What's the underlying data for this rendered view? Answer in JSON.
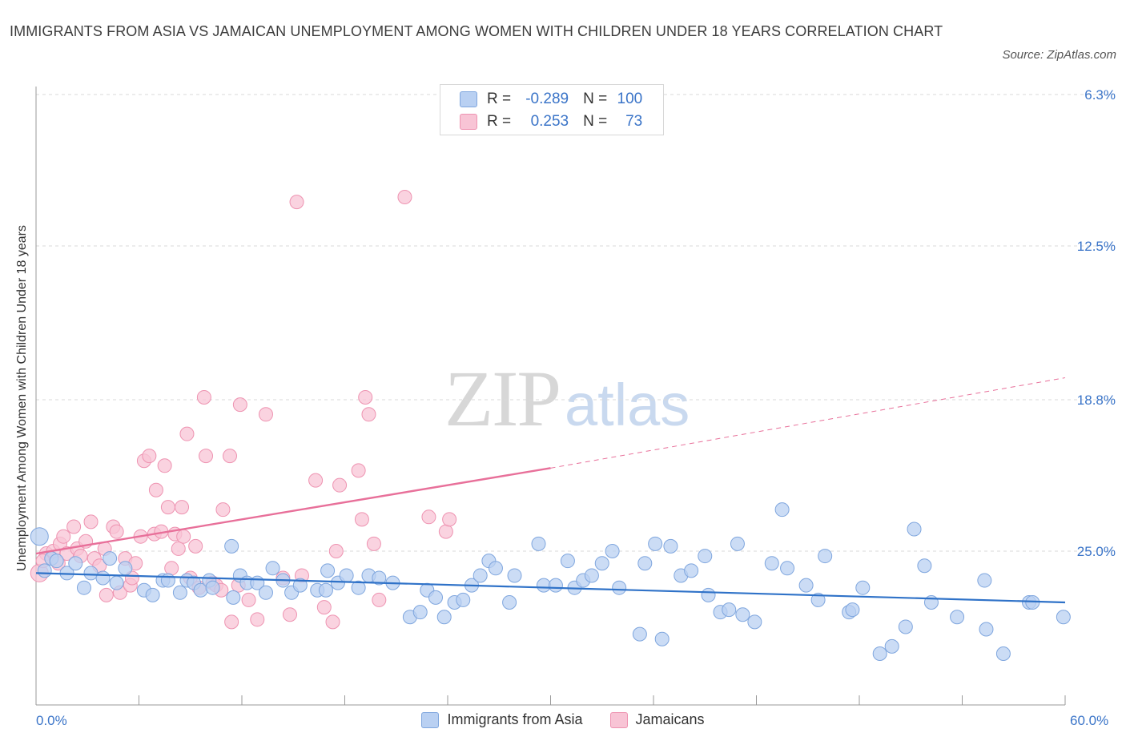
{
  "title": "IMMIGRANTS FROM ASIA VS JAMAICAN UNEMPLOYMENT AMONG WOMEN WITH CHILDREN UNDER 18 YEARS CORRELATION CHART",
  "source": "Source: ZipAtlas.com",
  "watermark": {
    "zip": "ZIP",
    "atlas": "atlas"
  },
  "legend": {
    "rows": [
      {
        "r_label": "R =",
        "r_value": "-0.289",
        "n_label": "N =",
        "n_value": "100"
      },
      {
        "r_label": "R =",
        "r_value": "0.253",
        "n_label": "N =",
        "n_value": "73"
      }
    ]
  },
  "bottom_legend": [
    "Immigrants from Asia",
    "Jamaicans"
  ],
  "x_ticks": [
    "0.0%",
    "60.0%"
  ],
  "y_ticks": [
    "25.0%",
    "18.8%",
    "12.5%",
    "6.3%"
  ],
  "colors": {
    "blue_fill": "#b9d0f2",
    "blue_stroke": "#7fa6de",
    "blue_line": "#2f72c8",
    "pink_fill": "#f8c4d5",
    "pink_stroke": "#ee93b1",
    "pink_line": "#e8709a",
    "tick_text": "#3a74c8",
    "grid": "#d9d9d9"
  },
  "chart_data": {
    "type": "scatter",
    "title": "IMMIGRANTS FROM ASIA VS JAMAICAN UNEMPLOYMENT AMONG WOMEN WITH CHILDREN UNDER 18 YEARS CORRELATION CHART",
    "xlabel": "",
    "ylabel": "Unemployment Among Women with Children Under 18 years",
    "xlim": [
      0,
      60
    ],
    "ylim": [
      0,
      25
    ],
    "y_ticks": [
      6.3,
      12.5,
      18.8,
      25.0
    ],
    "grid": "horizontal dashed",
    "legend_position": "top-center",
    "series": [
      {
        "name": "Immigrants from Asia",
        "R": -0.289,
        "N": 100,
        "trend": {
          "x": [
            0,
            60
          ],
          "y": [
            5.4,
            4.2
          ],
          "style": "solid"
        },
        "points": [
          [
            0.2,
            6.9
          ],
          [
            0.5,
            5.5
          ],
          [
            0.9,
            6.0
          ],
          [
            1.2,
            5.9
          ],
          [
            1.8,
            5.4
          ],
          [
            2.3,
            5.8
          ],
          [
            2.8,
            4.8
          ],
          [
            3.2,
            5.4
          ],
          [
            3.9,
            5.2
          ],
          [
            4.3,
            6.0
          ],
          [
            4.7,
            5.0
          ],
          [
            5.2,
            5.6
          ],
          [
            6.3,
            4.7
          ],
          [
            6.8,
            4.5
          ],
          [
            7.4,
            5.1
          ],
          [
            7.7,
            5.1
          ],
          [
            8.4,
            4.6
          ],
          [
            8.8,
            5.1
          ],
          [
            9.2,
            5.0
          ],
          [
            9.6,
            4.7
          ],
          [
            10.1,
            5.1
          ],
          [
            10.3,
            4.8
          ],
          [
            11.4,
            6.5
          ],
          [
            11.5,
            4.4
          ],
          [
            11.9,
            5.3
          ],
          [
            12.3,
            5.0
          ],
          [
            12.9,
            5.0
          ],
          [
            13.4,
            4.6
          ],
          [
            13.8,
            5.6
          ],
          [
            14.4,
            5.1
          ],
          [
            14.9,
            4.6
          ],
          [
            15.4,
            4.9
          ],
          [
            16.4,
            4.7
          ],
          [
            16.9,
            4.7
          ],
          [
            17.0,
            5.5
          ],
          [
            17.6,
            5.0
          ],
          [
            18.1,
            5.3
          ],
          [
            18.8,
            4.8
          ],
          [
            19.4,
            5.3
          ],
          [
            20.0,
            5.2
          ],
          [
            20.8,
            5.0
          ],
          [
            21.8,
            3.6
          ],
          [
            22.4,
            3.8
          ],
          [
            22.8,
            4.7
          ],
          [
            23.3,
            4.4
          ],
          [
            23.8,
            3.6
          ],
          [
            24.4,
            4.2
          ],
          [
            24.9,
            4.3
          ],
          [
            25.4,
            4.9
          ],
          [
            25.9,
            5.3
          ],
          [
            26.4,
            5.9
          ],
          [
            26.8,
            5.6
          ],
          [
            27.6,
            4.2
          ],
          [
            27.9,
            5.3
          ],
          [
            29.3,
            6.6
          ],
          [
            29.6,
            4.9
          ],
          [
            30.3,
            4.9
          ],
          [
            31.0,
            5.9
          ],
          [
            31.4,
            4.8
          ],
          [
            31.9,
            5.1
          ],
          [
            32.4,
            5.3
          ],
          [
            33.0,
            5.8
          ],
          [
            33.6,
            6.3
          ],
          [
            34.0,
            4.8
          ],
          [
            35.2,
            2.9
          ],
          [
            35.5,
            5.8
          ],
          [
            36.1,
            6.6
          ],
          [
            36.5,
            2.7
          ],
          [
            37.0,
            6.5
          ],
          [
            37.6,
            5.3
          ],
          [
            38.2,
            5.5
          ],
          [
            39.0,
            6.1
          ],
          [
            39.2,
            4.5
          ],
          [
            39.9,
            3.8
          ],
          [
            40.4,
            3.9
          ],
          [
            40.9,
            6.6
          ],
          [
            41.2,
            3.7
          ],
          [
            41.9,
            3.4
          ],
          [
            42.9,
            5.8
          ],
          [
            43.5,
            8.0
          ],
          [
            43.8,
            5.6
          ],
          [
            44.9,
            4.9
          ],
          [
            45.6,
            4.3
          ],
          [
            46.0,
            6.1
          ],
          [
            47.4,
            3.8
          ],
          [
            47.6,
            3.9
          ],
          [
            48.2,
            4.8
          ],
          [
            49.2,
            2.1
          ],
          [
            49.9,
            2.4
          ],
          [
            50.7,
            3.2
          ],
          [
            51.2,
            7.2
          ],
          [
            51.8,
            5.7
          ],
          [
            52.2,
            4.2
          ],
          [
            53.7,
            3.6
          ],
          [
            55.3,
            5.1
          ],
          [
            55.4,
            3.1
          ],
          [
            56.4,
            2.1
          ],
          [
            57.9,
            4.2
          ],
          [
            58.1,
            4.2
          ],
          [
            59.9,
            3.6
          ]
        ]
      },
      {
        "name": "Jamaicans",
        "R": 0.253,
        "N": 73,
        "trend": {
          "x": [
            0,
            30
          ],
          "y": [
            6.2,
            9.7
          ],
          "style": "solid",
          "extended": {
            "x": [
              30,
              60
            ],
            "y": [
              9.7,
              13.4
            ],
            "style": "dashed"
          }
        },
        "points": [
          [
            0.2,
            5.4
          ],
          [
            0.6,
            6.2
          ],
          [
            1.0,
            6.3
          ],
          [
            1.4,
            6.6
          ],
          [
            1.6,
            6.9
          ],
          [
            1.8,
            6.2
          ],
          [
            2.2,
            7.3
          ],
          [
            2.4,
            6.4
          ],
          [
            2.9,
            6.7
          ],
          [
            3.2,
            7.5
          ],
          [
            3.4,
            6.0
          ],
          [
            3.7,
            5.7
          ],
          [
            4.0,
            6.4
          ],
          [
            4.1,
            4.5
          ],
          [
            4.5,
            7.3
          ],
          [
            4.7,
            7.1
          ],
          [
            4.9,
            4.6
          ],
          [
            5.2,
            6.0
          ],
          [
            5.5,
            4.9
          ],
          [
            5.8,
            5.8
          ],
          [
            6.1,
            6.9
          ],
          [
            6.3,
            10.0
          ],
          [
            6.6,
            10.2
          ],
          [
            6.9,
            7.0
          ],
          [
            7.0,
            8.8
          ],
          [
            7.3,
            7.1
          ],
          [
            7.5,
            9.8
          ],
          [
            7.7,
            8.1
          ],
          [
            7.9,
            5.6
          ],
          [
            8.1,
            7.0
          ],
          [
            8.3,
            6.4
          ],
          [
            8.5,
            8.1
          ],
          [
            8.8,
            11.1
          ],
          [
            9.0,
            5.2
          ],
          [
            9.3,
            6.5
          ],
          [
            9.5,
            4.8
          ],
          [
            9.8,
            12.6
          ],
          [
            9.9,
            10.2
          ],
          [
            10.3,
            5.0
          ],
          [
            10.5,
            4.9
          ],
          [
            10.9,
            8.0
          ],
          [
            11.3,
            10.2
          ],
          [
            11.4,
            3.4
          ],
          [
            11.8,
            4.9
          ],
          [
            11.9,
            12.3
          ],
          [
            12.4,
            4.3
          ],
          [
            12.9,
            3.5
          ],
          [
            13.4,
            11.9
          ],
          [
            14.4,
            5.2
          ],
          [
            14.8,
            3.7
          ],
          [
            15.2,
            20.6
          ],
          [
            15.5,
            5.3
          ],
          [
            16.3,
            9.2
          ],
          [
            16.8,
            4.0
          ],
          [
            17.3,
            3.4
          ],
          [
            17.5,
            6.3
          ],
          [
            17.7,
            9.0
          ],
          [
            18.8,
            9.6
          ],
          [
            19.0,
            7.6
          ],
          [
            19.2,
            12.6
          ],
          [
            19.4,
            11.9
          ],
          [
            19.7,
            6.6
          ],
          [
            20.0,
            4.3
          ],
          [
            21.5,
            20.8
          ],
          [
            22.9,
            7.7
          ],
          [
            23.9,
            7.1
          ],
          [
            24.1,
            7.6
          ],
          [
            0.4,
            5.9
          ],
          [
            1.3,
            5.8
          ],
          [
            2.6,
            6.1
          ],
          [
            5.6,
            5.2
          ],
          [
            8.6,
            6.9
          ],
          [
            10.8,
            4.7
          ]
        ]
      }
    ]
  }
}
